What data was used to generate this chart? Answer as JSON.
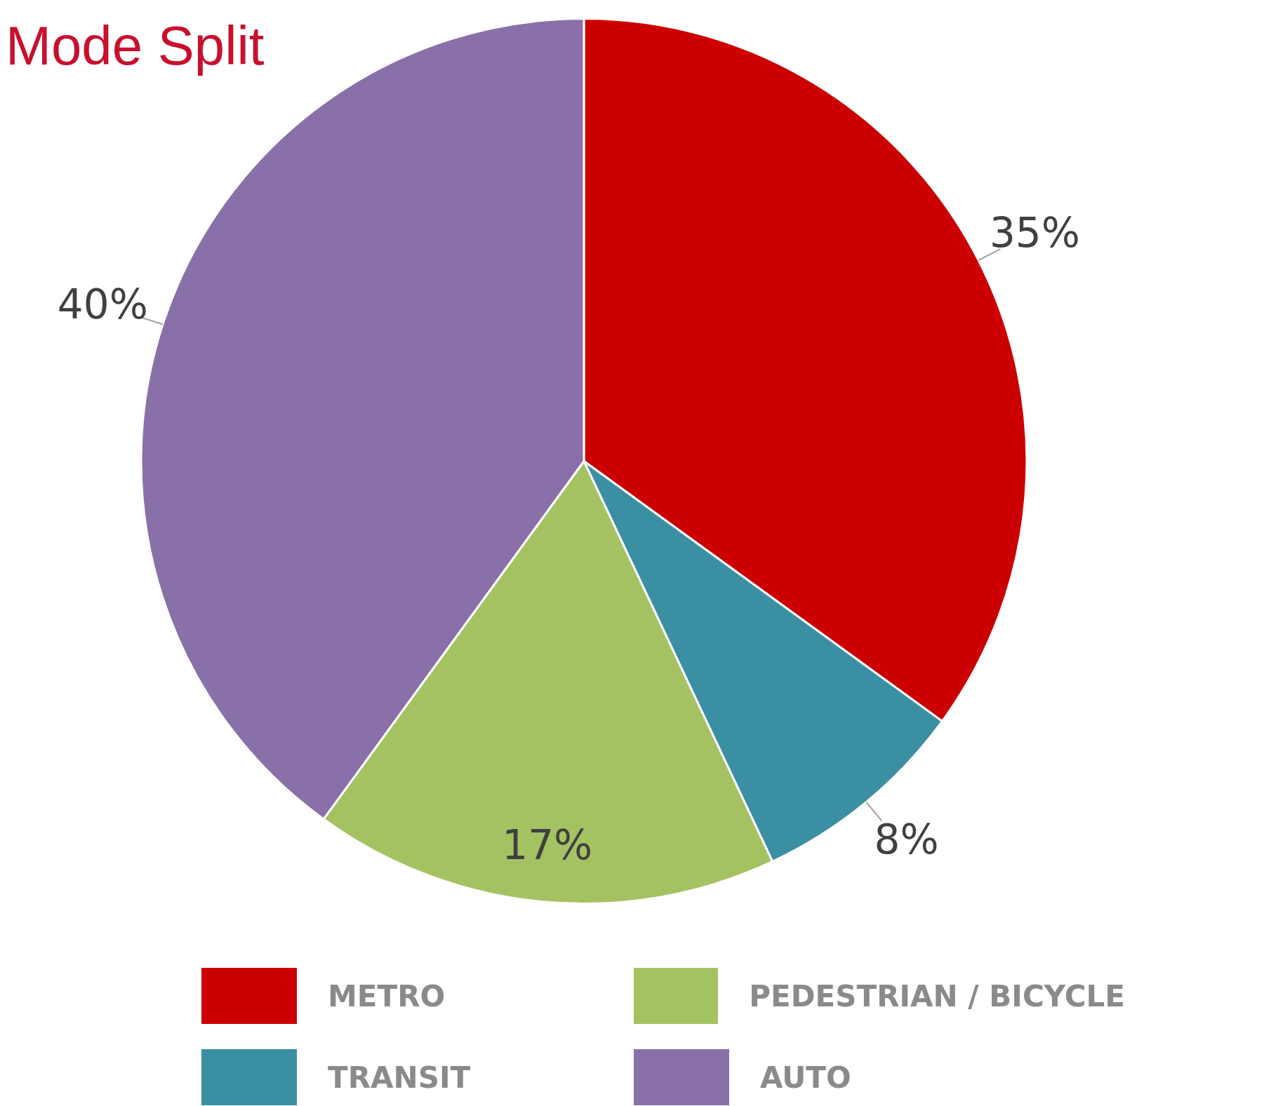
{
  "chart_data": {
    "type": "pie",
    "title": "Mode Split",
    "categories": [
      "METRO",
      "TRANSIT",
      "PEDESTRIAN / BICYCLE",
      "AUTO"
    ],
    "values": [
      35,
      8,
      17,
      40
    ],
    "colors": [
      "#cc0000",
      "#3a8fa3",
      "#a5c263",
      "#8a70a8"
    ],
    "value_labels": [
      "35%",
      "8%",
      "17%",
      "40%"
    ],
    "legend": "bottom"
  }
}
